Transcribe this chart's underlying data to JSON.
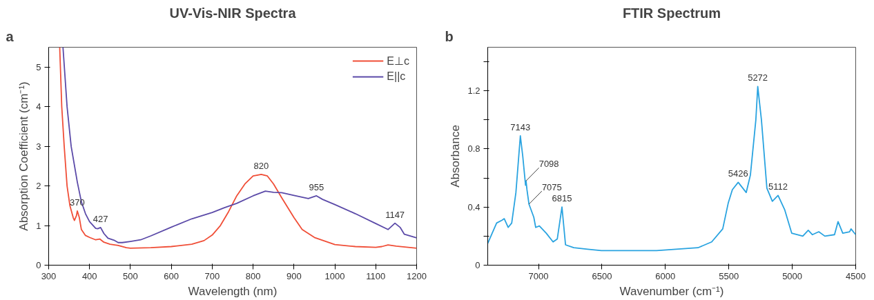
{
  "chart_data": [
    {
      "type": "line",
      "title": "UV-Vis-NIR Spectra",
      "xlabel": "Wavelength (nm)",
      "ylabel": "Absorption Coefficient (cm⁻¹)",
      "xlim": [
        300,
        1200
      ],
      "ylim": [
        0,
        5.5
      ],
      "xticks": [
        300,
        400,
        500,
        600,
        700,
        800,
        900,
        1000,
        1100,
        1200
      ],
      "yticks": [
        0,
        1,
        2,
        3,
        4,
        5
      ],
      "grid": false,
      "legend": "top right",
      "series": [
        {
          "name": "E⊥c",
          "color": "#f04e37",
          "x": [
            327,
            332,
            338,
            345,
            352,
            360,
            363,
            368,
            370,
            375,
            380,
            390,
            400,
            415,
            425,
            435,
            450,
            470,
            490,
            500,
            550,
            600,
            650,
            680,
            700,
            720,
            740,
            760,
            780,
            800,
            820,
            835,
            850,
            870,
            900,
            920,
            950,
            1000,
            1050,
            1100,
            1115,
            1130,
            1150,
            1200
          ],
          "values": [
            5.5,
            4.0,
            3.0,
            2.0,
            1.5,
            1.2,
            1.13,
            1.25,
            1.37,
            1.2,
            0.9,
            0.75,
            0.7,
            0.64,
            0.66,
            0.58,
            0.53,
            0.5,
            0.44,
            0.43,
            0.44,
            0.47,
            0.53,
            0.62,
            0.76,
            1.0,
            1.35,
            1.75,
            2.05,
            2.25,
            2.29,
            2.25,
            2.05,
            1.7,
            1.2,
            0.9,
            0.7,
            0.52,
            0.47,
            0.45,
            0.47,
            0.51,
            0.48,
            0.43
          ]
        },
        {
          "name": "E||c",
          "color": "#5b4aa8",
          "x": [
            335,
            345,
            355,
            370,
            380,
            390,
            400,
            415,
            420,
            427,
            435,
            445,
            460,
            470,
            480,
            500,
            525,
            550,
            600,
            650,
            700,
            730,
            760,
            800,
            830,
            850,
            870,
            900,
            935,
            955,
            970,
            1000,
            1050,
            1100,
            1130,
            1147,
            1160,
            1170,
            1200
          ],
          "values": [
            5.5,
            4.0,
            3.0,
            2.1,
            1.6,
            1.3,
            1.1,
            0.93,
            0.92,
            0.95,
            0.8,
            0.68,
            0.63,
            0.57,
            0.57,
            0.6,
            0.64,
            0.74,
            0.96,
            1.17,
            1.33,
            1.45,
            1.56,
            1.75,
            1.87,
            1.84,
            1.83,
            1.76,
            1.68,
            1.75,
            1.66,
            1.53,
            1.3,
            1.05,
            0.9,
            1.06,
            0.95,
            0.78,
            0.69
          ]
        }
      ],
      "annotations": [
        "a",
        {
          "text": "370",
          "x": 370,
          "y": 1.37
        },
        {
          "text": "427",
          "x": 427,
          "y": 0.95
        },
        {
          "text": "820",
          "x": 820,
          "y": 2.29
        },
        {
          "text": "955",
          "x": 955,
          "y": 1.75
        },
        {
          "text": "1147",
          "x": 1147,
          "y": 1.06
        }
      ]
    },
    {
      "type": "line",
      "title": "FTIR Spectrum",
      "xlabel": "Wavenumber (cm⁻¹)",
      "ylabel": "Absorbance",
      "xlim": [
        7400,
        4500
      ],
      "ylim": [
        0,
        1.5
      ],
      "xticks": [
        7000,
        6500,
        6000,
        5500,
        5000,
        4500
      ],
      "yticks": [
        0,
        {
          "value": 0.2,
          "label": null
        },
        0.4,
        {
          "value": 0.6,
          "label": null
        },
        0.8,
        {
          "value": 1.0,
          "label": null
        },
        1.2,
        {
          "value": 1.4,
          "label": null
        }
      ],
      "grid": false,
      "series": [
        {
          "color": "#29a3e0",
          "x": [
            7400,
            7330,
            7287,
            7270,
            7239,
            7211,
            7178,
            7143,
            7124,
            7102,
            7098,
            7091,
            7075,
            7037,
            7022,
            6993,
            6939,
            6885,
            6852,
            6815,
            6787,
            6722,
            6613,
            6504,
            6070,
            5743,
            5635,
            5548,
            5504,
            5472,
            5426,
            5363,
            5330,
            5287,
            5272,
            5243,
            5200,
            5157,
            5112,
            5059,
            5004,
            4917,
            4874,
            4841,
            4791,
            4743,
            4667,
            4639,
            4602,
            4548,
            4537,
            4500
          ],
          "values": [
            0.15,
            0.29,
            0.31,
            0.32,
            0.26,
            0.29,
            0.5,
            0.89,
            0.75,
            0.55,
            0.58,
            0.52,
            0.42,
            0.33,
            0.26,
            0.27,
            0.22,
            0.16,
            0.18,
            0.4,
            0.14,
            0.12,
            0.11,
            0.1,
            0.1,
            0.12,
            0.16,
            0.25,
            0.43,
            0.52,
            0.57,
            0.5,
            0.62,
            1.0,
            1.23,
            1.0,
            0.53,
            0.44,
            0.48,
            0.38,
            0.22,
            0.2,
            0.24,
            0.21,
            0.23,
            0.2,
            0.21,
            0.3,
            0.22,
            0.23,
            0.25,
            0.21
          ]
        }
      ],
      "annotations": [
        "b",
        {
          "text": "7143",
          "x": 7143,
          "y": 0.89
        },
        {
          "text": "7098",
          "x": 7098,
          "y": 0.58
        },
        {
          "text": "7075",
          "x": 7075,
          "y": 0.42
        },
        {
          "text": "6815",
          "x": 6815,
          "y": 0.4
        },
        {
          "text": "5426",
          "x": 5426,
          "y": 0.57
        },
        {
          "text": "5272",
          "x": 5272,
          "y": 1.23
        },
        {
          "text": "5112",
          "x": 5112,
          "y": 0.48
        }
      ]
    }
  ]
}
